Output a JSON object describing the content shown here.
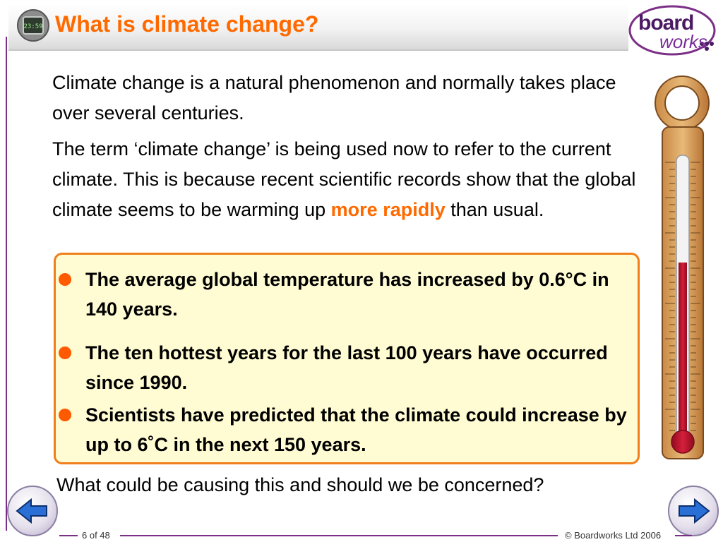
{
  "slide": {
    "title": "What is climate change?",
    "paragraph1": "Climate change is a natural phenomenon and normally takes place over several centuries.",
    "paragraph2_start": "The term ‘climate change’ is being used now to refer to the current climate. This is because recent scientific records show that the global climate seems to be warming up ",
    "paragraph2_highlight": "more rapidly",
    "paragraph2_end": " than usual.",
    "bullets": [
      "The average global temperature has increased by 0.6°C in 140 years.",
      "The ten hottest years for the last 100 years have occurred since 1990.",
      "Scientists have predicted that the climate could increase by up to 6˚C in the next 150 years."
    ],
    "question": "What could be causing this and should we be concerned?"
  },
  "header": {
    "icon_label": "23:59"
  },
  "logo": {
    "line1": "board",
    "line2": "works"
  },
  "footer": {
    "page": "6 of 48",
    "copyright": "© Boardworks Ltd 2006"
  },
  "colors": {
    "accent": "#ff6a00",
    "brand": "#7b2f86",
    "box_fill": "#fffbd2",
    "box_border": "#f07e1a",
    "thermometer_body": "#d9a05b",
    "mercury": "#c8102e"
  },
  "thermometer": {
    "level_fraction": 0.62
  }
}
